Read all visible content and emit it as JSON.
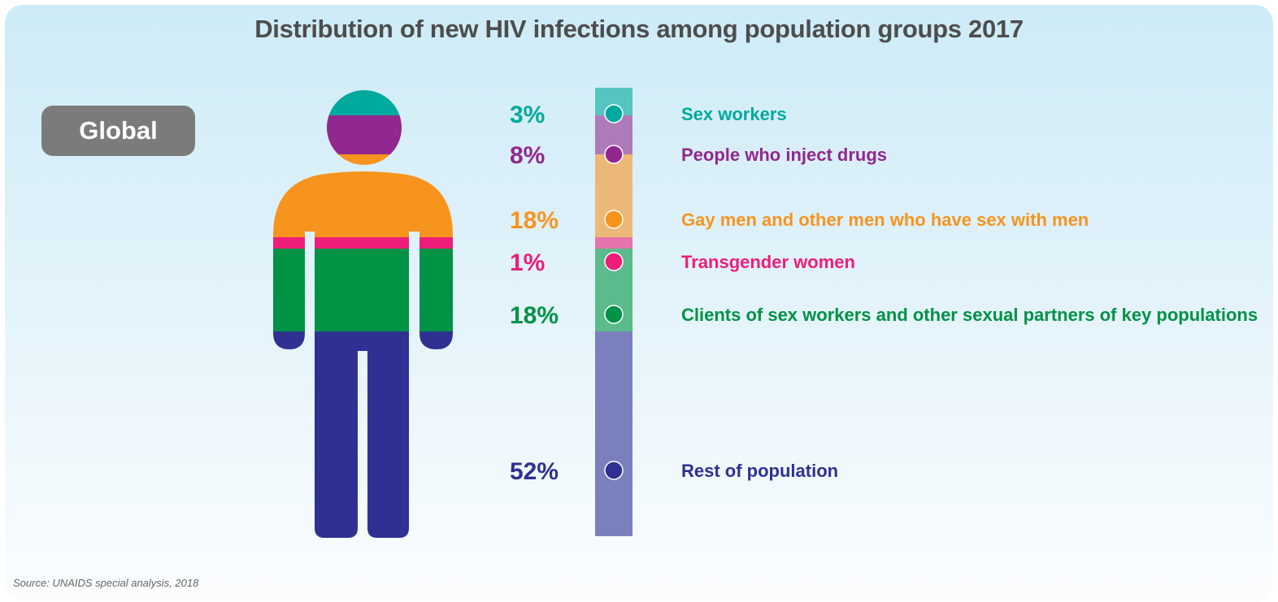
{
  "chart_data": {
    "type": "bar",
    "subtype": "stacked-single-bar-infographic",
    "title": "Distribution of new HIV infections among population groups 2017",
    "region": "Global",
    "unit": "%",
    "categories": [
      "Sex workers",
      "People who inject drugs",
      "Gay men and other men who have sex with men",
      "Transgender women",
      "Clients of sex workers and other sexual partners of key populations",
      "Rest of population"
    ],
    "values": [
      3,
      8,
      18,
      1,
      18,
      52
    ],
    "value_labels": [
      "3%",
      "8%",
      "18%",
      "1%",
      "18%",
      "52%"
    ],
    "colors": [
      "#00a99d",
      "#92278f",
      "#f7941d",
      "#ed1e79",
      "#009245",
      "#2e3192"
    ],
    "bar_colors": [
      "#56c5c0",
      "#ae7ab9",
      "#ecb877",
      "#e673aa",
      "#5bbb8c",
      "#7a80bb"
    ],
    "source": "Source: UNAIDS special analysis, 2018"
  }
}
